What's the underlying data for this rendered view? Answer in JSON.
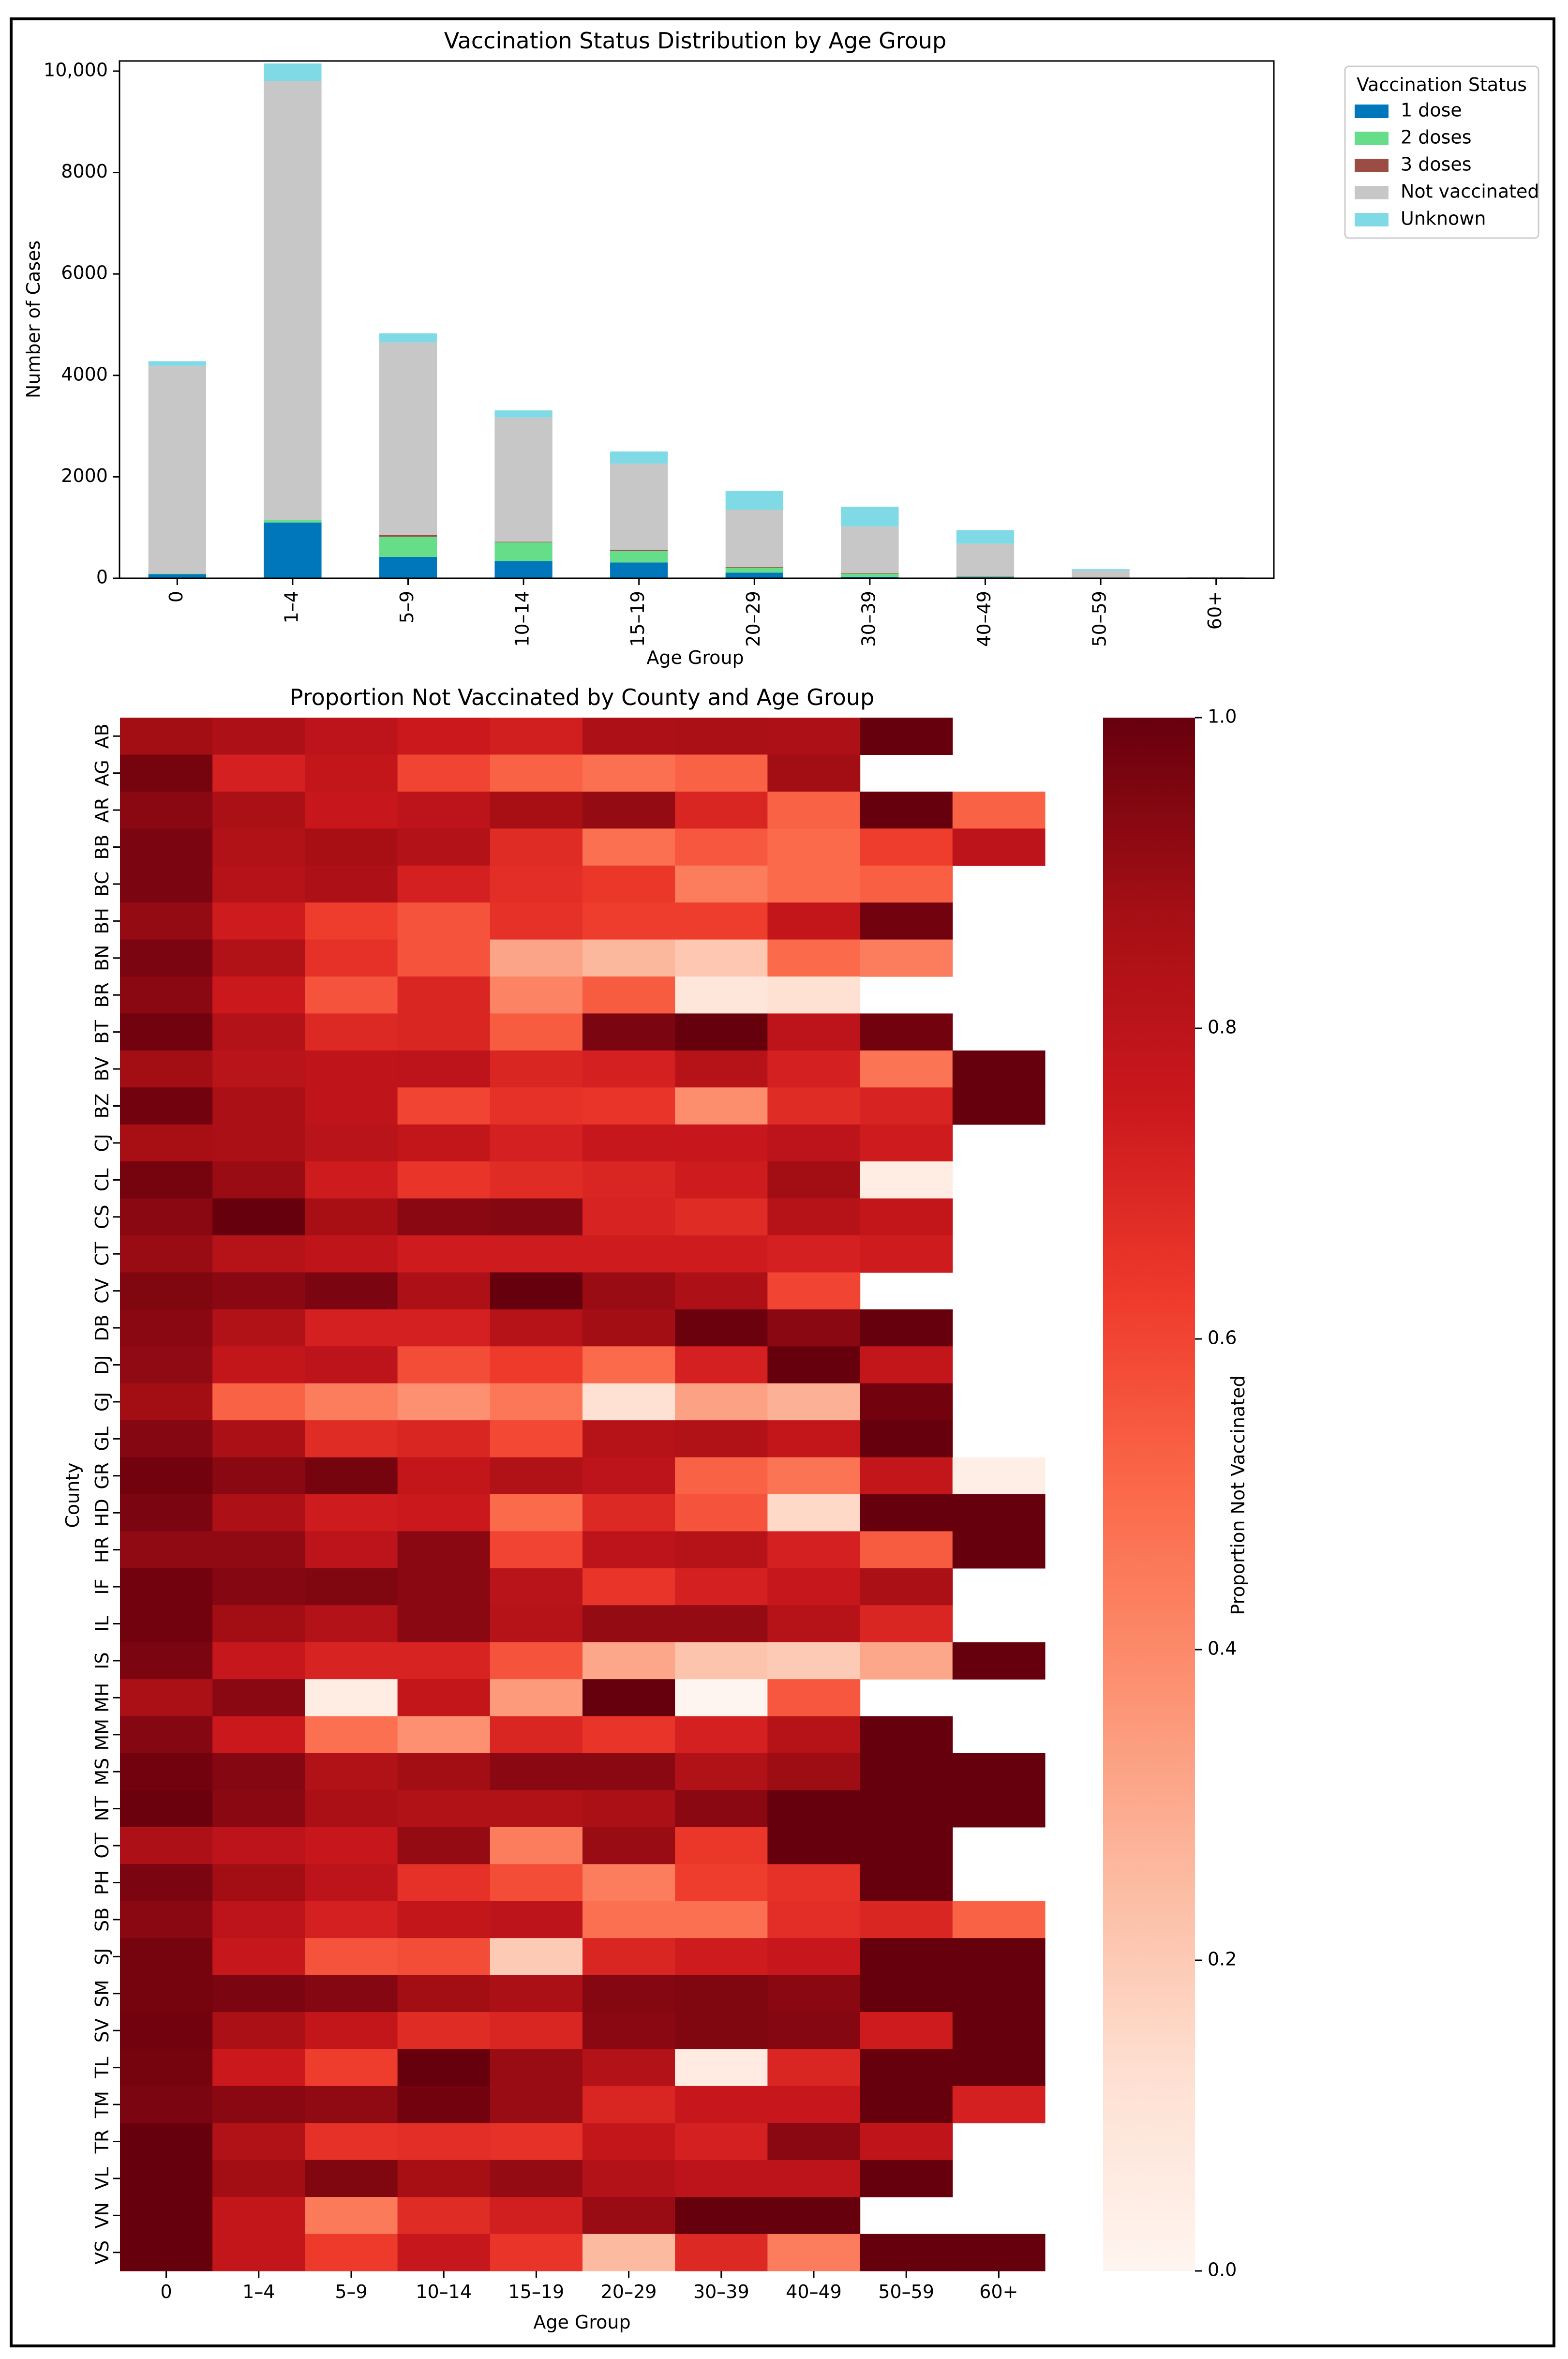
{
  "chart_data": [
    {
      "type": "bar",
      "stacked": true,
      "title": "Vaccination Status Distribution by Age Group",
      "xlabel": "Age Group",
      "ylabel": "Number of Cases",
      "ylim": [
        0,
        10200
      ],
      "yticks": [
        0,
        2000,
        4000,
        6000,
        8000,
        10000
      ],
      "ytick_labels": [
        "0",
        "2000",
        "4000",
        "6000",
        "8000",
        "10,000"
      ],
      "categories": [
        "0",
        "1–4",
        "5–9",
        "10–14",
        "15–19",
        "20–29",
        "30–39",
        "40–49",
        "50–59",
        "60+"
      ],
      "legend_title": "Vaccination Status",
      "legend_position": "outside top-right",
      "series": [
        {
          "name": "1 dose",
          "color": "#0077bb",
          "values": [
            80,
            1100,
            420,
            340,
            310,
            110,
            30,
            20,
            5,
            2
          ]
        },
        {
          "name": "2 doses",
          "color": "#66dd88",
          "values": [
            10,
            50,
            400,
            370,
            230,
            100,
            60,
            15,
            5,
            2
          ]
        },
        {
          "name": "3 doses",
          "color": "#9b4c44",
          "values": [
            0,
            0,
            30,
            10,
            20,
            10,
            10,
            5,
            0,
            0
          ]
        },
        {
          "name": "Not vaccinated",
          "color": "#c7c7c7",
          "values": [
            4100,
            8650,
            3800,
            2450,
            1700,
            1130,
            920,
            640,
            140,
            15
          ]
        },
        {
          "name": "Unknown",
          "color": "#80dae6",
          "values": [
            90,
            350,
            180,
            140,
            240,
            370,
            390,
            270,
            30,
            3
          ]
        }
      ]
    },
    {
      "type": "heatmap",
      "title": "Proportion Not Vaccinated by County and Age Group",
      "xlabel": "Age Group",
      "ylabel": "County",
      "x": [
        "0",
        "1–4",
        "5–9",
        "10–14",
        "15–19",
        "20–29",
        "30–39",
        "40–49",
        "50–59",
        "60+"
      ],
      "y": [
        "AB",
        "AG",
        "AR",
        "BB",
        "BC",
        "BH",
        "BN",
        "BR",
        "BT",
        "BV",
        "BZ",
        "CJ",
        "CL",
        "CS",
        "CT",
        "CV",
        "DB",
        "DJ",
        "GJ",
        "GL",
        "GR",
        "HD",
        "HR",
        "IF",
        "IL",
        "IS",
        "MH",
        "MM",
        "MS",
        "NT",
        "OT",
        "PH",
        "SB",
        "SJ",
        "SM",
        "SV",
        "TL",
        "TM",
        "TR",
        "VL",
        "VN",
        "VS"
      ],
      "colorbar_label": "Proportion Not Vaccinated",
      "colorbar_range": [
        0.0,
        1.0
      ],
      "colorbar_ticks": [
        "0.0",
        "0.2",
        "0.4",
        "0.6",
        "0.8",
        "1.0"
      ],
      "colormap": "Reds",
      "values": [
        [
          0.88,
          0.85,
          0.8,
          0.75,
          0.73,
          0.85,
          0.86,
          0.85,
          1.0,
          null
        ],
        [
          0.97,
          0.72,
          0.78,
          0.6,
          0.52,
          0.48,
          0.52,
          0.88,
          null,
          null
        ],
        [
          0.93,
          0.86,
          0.76,
          0.8,
          0.87,
          0.91,
          0.7,
          0.52,
          1.0,
          0.52
        ],
        [
          0.96,
          0.84,
          0.87,
          0.83,
          0.68,
          0.48,
          0.55,
          0.5,
          0.62,
          0.8
        ],
        [
          0.96,
          0.82,
          0.85,
          0.72,
          0.67,
          0.64,
          0.44,
          0.5,
          0.53,
          null
        ],
        [
          0.91,
          0.74,
          0.62,
          0.56,
          0.66,
          0.62,
          0.62,
          0.78,
          0.98,
          null
        ],
        [
          0.96,
          0.84,
          0.66,
          0.56,
          0.32,
          0.26,
          0.21,
          0.5,
          0.44,
          null
        ],
        [
          0.93,
          0.75,
          0.56,
          0.7,
          0.42,
          0.54,
          0.09,
          0.12,
          null,
          null
        ],
        [
          0.98,
          0.83,
          0.69,
          0.7,
          0.54,
          0.96,
          1.0,
          0.8,
          0.98,
          null
        ],
        [
          0.88,
          0.81,
          0.79,
          0.8,
          0.7,
          0.72,
          0.82,
          0.72,
          0.47,
          1.0
        ],
        [
          0.98,
          0.86,
          0.79,
          0.6,
          0.66,
          0.65,
          0.39,
          0.68,
          0.71,
          1.0
        ],
        [
          0.87,
          0.86,
          0.81,
          0.78,
          0.72,
          0.77,
          0.76,
          0.8,
          0.74,
          null
        ],
        [
          0.97,
          0.9,
          0.74,
          0.65,
          0.68,
          0.7,
          0.74,
          0.88,
          0.05,
          null
        ],
        [
          0.93,
          1.0,
          0.87,
          0.93,
          0.94,
          0.71,
          0.68,
          0.82,
          0.78,
          null
        ],
        [
          0.9,
          0.82,
          0.79,
          0.74,
          0.74,
          0.74,
          0.74,
          0.72,
          0.74,
          null
        ],
        [
          0.95,
          0.93,
          0.96,
          0.85,
          1.0,
          0.9,
          0.85,
          0.6,
          null,
          null
        ],
        [
          0.93,
          0.84,
          0.72,
          0.72,
          0.82,
          0.88,
          0.99,
          0.93,
          1.0,
          null
        ],
        [
          0.92,
          0.78,
          0.8,
          0.58,
          0.63,
          0.5,
          0.72,
          1.0,
          0.78,
          null
        ],
        [
          0.88,
          0.52,
          0.44,
          0.38,
          0.46,
          0.12,
          0.33,
          0.28,
          0.98,
          null
        ],
        [
          0.94,
          0.86,
          0.68,
          0.7,
          0.59,
          0.82,
          0.84,
          0.78,
          1.0,
          null
        ],
        [
          0.98,
          0.93,
          0.97,
          0.78,
          0.84,
          0.8,
          0.52,
          0.47,
          0.78,
          0.04
        ],
        [
          0.96,
          0.85,
          0.74,
          0.75,
          0.5,
          0.69,
          0.56,
          0.15,
          1.0,
          1.0
        ],
        [
          0.92,
          0.92,
          0.8,
          0.93,
          0.6,
          0.8,
          0.82,
          0.72,
          0.54,
          1.0
        ],
        [
          0.98,
          0.94,
          0.95,
          0.93,
          0.81,
          0.65,
          0.72,
          0.77,
          0.86,
          null
        ],
        [
          0.98,
          0.88,
          0.83,
          0.93,
          0.82,
          0.91,
          0.91,
          0.82,
          0.7,
          null
        ],
        [
          0.96,
          0.77,
          0.71,
          0.71,
          0.56,
          0.31,
          0.22,
          0.2,
          0.31,
          1.0
        ],
        [
          0.86,
          0.93,
          0.05,
          0.78,
          0.35,
          1.0,
          0.0,
          0.55,
          null,
          null
        ],
        [
          0.94,
          0.75,
          0.48,
          0.38,
          0.7,
          0.65,
          0.72,
          0.82,
          1.0,
          null
        ],
        [
          0.98,
          0.94,
          0.84,
          0.88,
          0.93,
          0.93,
          0.84,
          0.89,
          1.0,
          1.0
        ],
        [
          0.99,
          0.93,
          0.86,
          0.84,
          0.84,
          0.86,
          0.93,
          1.0,
          1.0,
          1.0
        ],
        [
          0.85,
          0.8,
          0.76,
          0.91,
          0.44,
          0.9,
          0.64,
          1.0,
          1.0,
          null
        ],
        [
          0.96,
          0.88,
          0.8,
          0.66,
          0.58,
          0.44,
          0.62,
          0.66,
          1.0,
          null
        ],
        [
          0.93,
          0.8,
          0.72,
          0.78,
          0.8,
          0.48,
          0.48,
          0.67,
          0.7,
          0.52
        ],
        [
          0.97,
          0.77,
          0.56,
          0.58,
          0.2,
          0.7,
          0.74,
          0.76,
          1.0,
          1.0
        ],
        [
          0.97,
          0.96,
          0.94,
          0.88,
          0.86,
          0.94,
          0.95,
          0.93,
          1.0,
          1.0
        ],
        [
          0.98,
          0.86,
          0.78,
          0.68,
          0.7,
          0.93,
          0.95,
          0.94,
          0.74,
          1.0
        ],
        [
          0.97,
          0.75,
          0.62,
          1.0,
          0.9,
          0.83,
          0.06,
          0.7,
          1.0,
          1.0
        ],
        [
          0.96,
          0.93,
          0.92,
          0.98,
          0.9,
          0.7,
          0.76,
          0.76,
          1.0,
          0.72
        ],
        [
          1.0,
          0.84,
          0.66,
          0.67,
          0.66,
          0.78,
          0.72,
          0.93,
          0.79,
          null
        ],
        [
          1.0,
          0.88,
          0.95,
          0.87,
          0.91,
          0.83,
          0.8,
          0.8,
          1.0,
          null
        ],
        [
          1.0,
          0.78,
          0.45,
          0.68,
          0.73,
          0.9,
          1.0,
          1.0,
          null,
          null
        ],
        [
          1.0,
          0.78,
          0.63,
          0.77,
          0.65,
          0.25,
          0.69,
          0.44,
          1.0,
          1.0
        ]
      ]
    }
  ]
}
